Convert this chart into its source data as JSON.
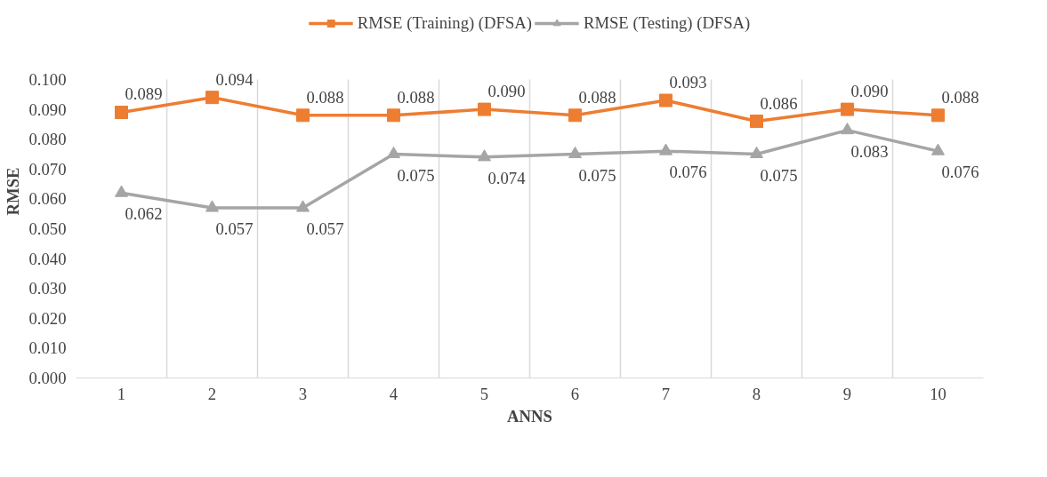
{
  "chart_data": {
    "type": "line",
    "xlabel": "ANNS",
    "ylabel": "RMSE",
    "categories": [
      "1",
      "2",
      "3",
      "4",
      "5",
      "6",
      "7",
      "8",
      "9",
      "10"
    ],
    "series": [
      {
        "name": "RMSE (Training) (DFSA)",
        "color": "#ed7d31",
        "marker": "square",
        "values": [
          0.089,
          0.094,
          0.088,
          0.088,
          0.09,
          0.088,
          0.093,
          0.086,
          0.09,
          0.088
        ],
        "value_labels": [
          "0.089",
          "0.094",
          "0.088",
          "0.088",
          "0.090",
          "0.088",
          "0.093",
          "0.086",
          "0.090",
          "0.088"
        ]
      },
      {
        "name": "RMSE (Testing) (DFSA)",
        "color": "#a5a5a5",
        "marker": "triangle",
        "values": [
          0.062,
          0.057,
          0.057,
          0.075,
          0.074,
          0.075,
          0.076,
          0.075,
          0.083,
          0.076
        ],
        "value_labels": [
          "0.062",
          "0.057",
          "0.057",
          "0.075",
          "0.074",
          "0.075",
          "0.076",
          "0.075",
          "0.083",
          "0.076"
        ]
      }
    ],
    "ylim": [
      0,
      0.1
    ],
    "yticks": [
      {
        "value": 0,
        "label": "0.000"
      },
      {
        "value": 0.01,
        "label": "0.010"
      },
      {
        "value": 0.02,
        "label": "0.020"
      },
      {
        "value": 0.03,
        "label": "0.030"
      },
      {
        "value": 0.04,
        "label": "0.040"
      },
      {
        "value": 0.05,
        "label": "0.050"
      },
      {
        "value": 0.06,
        "label": "0.060"
      },
      {
        "value": 0.07,
        "label": "0.070"
      },
      {
        "value": 0.08,
        "label": "0.080"
      },
      {
        "value": 0.09,
        "label": "0.090"
      },
      {
        "value": 0.1,
        "label": "0.100"
      }
    ],
    "grid": "x",
    "legend": "top",
    "line_style": "solid"
  }
}
